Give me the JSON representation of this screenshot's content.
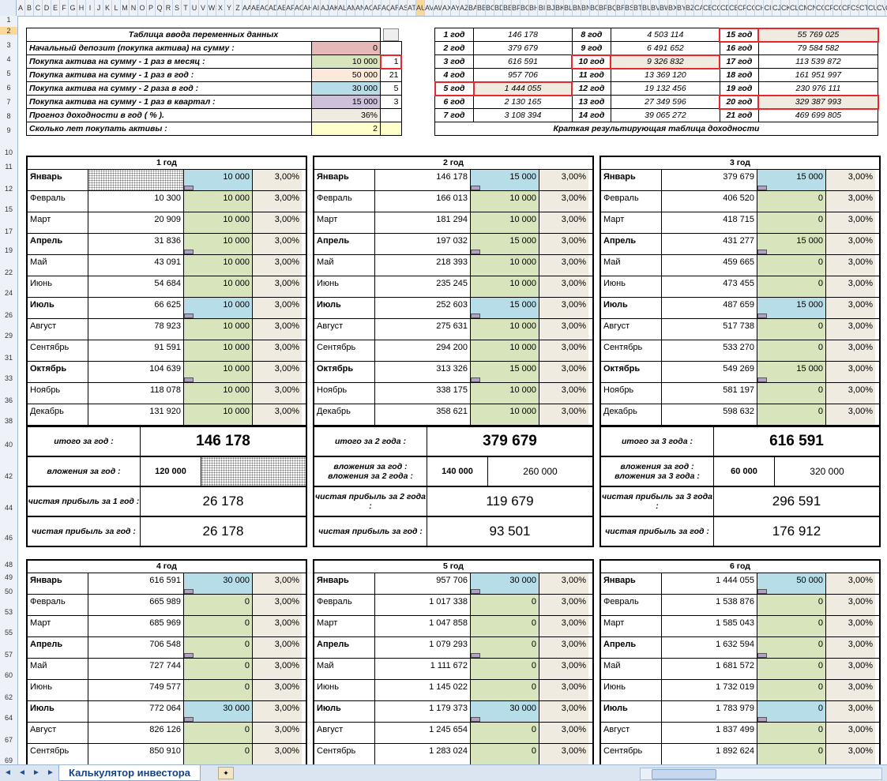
{
  "col_headers": [
    "A",
    "B",
    "C",
    "D",
    "E",
    "F",
    "G",
    "H",
    "I",
    "J",
    "K",
    "L",
    "M",
    "N",
    "O",
    "P",
    "Q",
    "R",
    "S",
    "T",
    "U",
    "V",
    "W",
    "X",
    "Y",
    "Z",
    "AA",
    "AB",
    "AC",
    "AD",
    "AE",
    "AF",
    "AG",
    "AH",
    "AI",
    "AJ",
    "AK",
    "AL",
    "AM",
    "AN",
    "AO",
    "AP",
    "AQ",
    "AR",
    "AS",
    "AT",
    "AU",
    "AV",
    "AW",
    "AX",
    "AY",
    "AZ",
    "BA",
    "BB",
    "BC",
    "BD",
    "BE",
    "BF",
    "BG",
    "BH",
    "BI",
    "BJ",
    "BK",
    "BL",
    "BM",
    "BN",
    "BO",
    "BP",
    "BQ",
    "BR",
    "BS",
    "BT",
    "BU",
    "BV",
    "BW",
    "BX",
    "BY",
    "BZ",
    "CA",
    "CB",
    "CC",
    "CD",
    "CE",
    "CF",
    "CG",
    "CH",
    "CI",
    "CJ",
    "CK",
    "CL",
    "CM",
    "CN",
    "CO",
    "CP",
    "CQ",
    "CR",
    "CS",
    "CT",
    "CU",
    "CV",
    "CW"
  ],
  "row_headers": [
    "1",
    "2",
    "3",
    "4",
    "5",
    "6",
    "7",
    "8",
    "9",
    "10",
    "11",
    "12",
    "15",
    "17",
    "19",
    "22",
    "24",
    "26",
    "29",
    "31",
    "33",
    "36",
    "38",
    "40",
    "42",
    "44",
    "46",
    "48",
    "49",
    "50",
    "53",
    "55",
    "57",
    "60",
    "62",
    "64",
    "67",
    "69"
  ],
  "input_table": {
    "title": "Таблица ввода переменных данных",
    "rows": [
      {
        "label": "Начальный депозит (покупка актива) на сумму :",
        "value": "0",
        "color": "#e6b8b7",
        "extra": ""
      },
      {
        "label": "Покупка актива на сумму - 1 раз в месяц :",
        "value": "10 000",
        "color": "#d7e4bc",
        "extra": "1"
      },
      {
        "label": "Покупка актива на сумму - 1 раз в год :",
        "value": "50 000",
        "color": "#fde9d9",
        "extra": "21"
      },
      {
        "label": "Покупка актива на сумму - 2 раза в год :",
        "value": "30 000",
        "color": "#b7dde8",
        "extra": "5"
      },
      {
        "label": "Покупка актива на сумму - 1 раз в квартал :",
        "value": "15 000",
        "color": "#ccc0da",
        "extra": "3"
      },
      {
        "label": "Прогноз доходности в год  ( % ).",
        "value": "36%",
        "color": "#efebe0",
        "extra": ""
      },
      {
        "label": "Сколько лет покупать активы :",
        "value": "2",
        "color": "#ffffcc",
        "extra": ""
      }
    ]
  },
  "results_table": {
    "caption": "Краткая результирующая таблица доходности",
    "rows": [
      [
        {
          "y": "1 год",
          "v": "146 178"
        },
        {
          "y": "8 год",
          "v": "4 503 114"
        },
        {
          "y": "15 год",
          "v": "55 769 025"
        }
      ],
      [
        {
          "y": "2 год",
          "v": "379 679"
        },
        {
          "y": "9 год",
          "v": "6 491 652"
        },
        {
          "y": "16 год",
          "v": "79 584 582"
        }
      ],
      [
        {
          "y": "3 год",
          "v": "616 591"
        },
        {
          "y": "10 год",
          "v": "9 326 832"
        },
        {
          "y": "17 год",
          "v": "113 539 872"
        }
      ],
      [
        {
          "y": "4 год",
          "v": "957 706"
        },
        {
          "y": "11 год",
          "v": "13 369 120"
        },
        {
          "y": "18 год",
          "v": "161 951 997"
        }
      ],
      [
        {
          "y": "5 год",
          "v": "1 444 055"
        },
        {
          "y": "12 год",
          "v": "19 132 456"
        },
        {
          "y": "19 год",
          "v": "230 976 111"
        }
      ],
      [
        {
          "y": "6 год",
          "v": "2 130 165"
        },
        {
          "y": "13 год",
          "v": "27 349 596"
        },
        {
          "y": "20 год",
          "v": "329 387 993"
        }
      ],
      [
        {
          "y": "7 год",
          "v": "3 108 394"
        },
        {
          "y": "14 год",
          "v": "39 065 272"
        },
        {
          "y": "21 год",
          "v": "469 699 805"
        }
      ]
    ]
  },
  "year_blocks": [
    {
      "title": "1 год",
      "months": [
        {
          "m": "Январь",
          "bal": "",
          "amt": "10 000",
          "pct": "3,00%",
          "bold": true,
          "blue": true
        },
        {
          "m": "Февраль",
          "bal": "10 300",
          "amt": "10 000",
          "pct": "3,00%"
        },
        {
          "m": "Март",
          "bal": "20 909",
          "amt": "10 000",
          "pct": "3,00%"
        },
        {
          "m": "Апрель",
          "bal": "31 836",
          "amt": "10 000",
          "pct": "3,00%",
          "bold": true
        },
        {
          "m": "Май",
          "bal": "43 091",
          "amt": "10 000",
          "pct": "3,00%"
        },
        {
          "m": "Июнь",
          "bal": "54 684",
          "amt": "10 000",
          "pct": "3,00%"
        },
        {
          "m": "Июль",
          "bal": "66 625",
          "amt": "10 000",
          "pct": "3,00%",
          "bold": true,
          "blue": true
        },
        {
          "m": "Август",
          "bal": "78 923",
          "amt": "10 000",
          "pct": "3,00%"
        },
        {
          "m": "Сентябрь",
          "bal": "91 591",
          "amt": "10 000",
          "pct": "3,00%"
        },
        {
          "m": "Октябрь",
          "bal": "104 639",
          "amt": "10 000",
          "pct": "3,00%",
          "bold": true
        },
        {
          "m": "Ноябрь",
          "bal": "118 078",
          "amt": "10 000",
          "pct": "3,00%"
        },
        {
          "m": "Декабрь",
          "bal": "131 920",
          "amt": "10 000",
          "pct": "3,00%"
        }
      ],
      "total_label": "итого за год :",
      "total": "146 178",
      "invest_label": "вложения за год :",
      "invest": "120 000",
      "invest_total": "",
      "profit_cum_label": "чистая прибыль за 1 год :",
      "profit_cum": "26 178",
      "profit_year_label": "чистая прибыль за год :",
      "profit_year": "26 178"
    },
    {
      "title": "2 год",
      "months": [
        {
          "m": "Январь",
          "bal": "146 178",
          "amt": "15 000",
          "pct": "3,00%",
          "bold": true,
          "blue": true
        },
        {
          "m": "Февраль",
          "bal": "166 013",
          "amt": "10 000",
          "pct": "3,00%"
        },
        {
          "m": "Март",
          "bal": "181 294",
          "amt": "10 000",
          "pct": "3,00%"
        },
        {
          "m": "Апрель",
          "bal": "197 032",
          "amt": "15 000",
          "pct": "3,00%",
          "bold": true
        },
        {
          "m": "Май",
          "bal": "218 393",
          "amt": "10 000",
          "pct": "3,00%"
        },
        {
          "m": "Июнь",
          "bal": "235 245",
          "amt": "10 000",
          "pct": "3,00%"
        },
        {
          "m": "Июль",
          "bal": "252 603",
          "amt": "15 000",
          "pct": "3,00%",
          "bold": true,
          "blue": true
        },
        {
          "m": "Август",
          "bal": "275 631",
          "amt": "10 000",
          "pct": "3,00%"
        },
        {
          "m": "Сентябрь",
          "bal": "294 200",
          "amt": "10 000",
          "pct": "3,00%"
        },
        {
          "m": "Октябрь",
          "bal": "313 326",
          "amt": "15 000",
          "pct": "3,00%",
          "bold": true
        },
        {
          "m": "Ноябрь",
          "bal": "338 175",
          "amt": "10 000",
          "pct": "3,00%"
        },
        {
          "m": "Декабрь",
          "bal": "358 621",
          "amt": "10 000",
          "pct": "3,00%"
        }
      ],
      "total_label": "итого за 2 года :",
      "total": "379 679",
      "invest_label": "вложения за год : вложения за 2 года :",
      "invest": "140 000",
      "invest_total": "260 000",
      "profit_cum_label": "чистая прибыль за 2 года :",
      "profit_cum": "119 679",
      "profit_year_label": "чистая прибыль за год :",
      "profit_year": "93 501"
    },
    {
      "title": "3 год",
      "months": [
        {
          "m": "Январь",
          "bal": "379 679",
          "amt": "15 000",
          "pct": "3,00%",
          "bold": true,
          "blue": true
        },
        {
          "m": "Февраль",
          "bal": "406 520",
          "amt": "0",
          "pct": "3,00%"
        },
        {
          "m": "Март",
          "bal": "418 715",
          "amt": "0",
          "pct": "3,00%"
        },
        {
          "m": "Апрель",
          "bal": "431 277",
          "amt": "15 000",
          "pct": "3,00%",
          "bold": true
        },
        {
          "m": "Май",
          "bal": "459 665",
          "amt": "0",
          "pct": "3,00%"
        },
        {
          "m": "Июнь",
          "bal": "473 455",
          "amt": "0",
          "pct": "3,00%"
        },
        {
          "m": "Июль",
          "bal": "487 659",
          "amt": "15 000",
          "pct": "3,00%",
          "bold": true,
          "blue": true
        },
        {
          "m": "Август",
          "bal": "517 738",
          "amt": "0",
          "pct": "3,00%"
        },
        {
          "m": "Сентябрь",
          "bal": "533 270",
          "amt": "0",
          "pct": "3,00%"
        },
        {
          "m": "Октябрь",
          "bal": "549 269",
          "amt": "15 000",
          "pct": "3,00%",
          "bold": true
        },
        {
          "m": "Ноябрь",
          "bal": "581 197",
          "amt": "0",
          "pct": "3,00%"
        },
        {
          "m": "Декабрь",
          "bal": "598 632",
          "amt": "0",
          "pct": "3,00%"
        }
      ],
      "total_label": "итого за 3 года :",
      "total": "616 591",
      "invest_label": "вложения за год : вложения за 3 года :",
      "invest": "60 000",
      "invest_total": "320 000",
      "profit_cum_label": "чистая прибыль за 3 года :",
      "profit_cum": "296 591",
      "profit_year_label": "чистая прибыль за год :",
      "profit_year": "176 912"
    },
    {
      "title": "4 год",
      "months": [
        {
          "m": "Январь",
          "bal": "616 591",
          "amt": "30 000",
          "pct": "3,00%",
          "bold": true,
          "blue": true
        },
        {
          "m": "Февраль",
          "bal": "665 989",
          "amt": "0",
          "pct": "3,00%"
        },
        {
          "m": "Март",
          "bal": "685 969",
          "amt": "0",
          "pct": "3,00%"
        },
        {
          "m": "Апрель",
          "bal": "706 548",
          "amt": "0",
          "pct": "3,00%",
          "bold": true
        },
        {
          "m": "Май",
          "bal": "727 744",
          "amt": "0",
          "pct": "3,00%"
        },
        {
          "m": "Июнь",
          "bal": "749 577",
          "amt": "0",
          "pct": "3,00%"
        },
        {
          "m": "Июль",
          "bal": "772 064",
          "amt": "30 000",
          "pct": "3,00%",
          "bold": true,
          "blue": true
        },
        {
          "m": "Август",
          "bal": "826 126",
          "amt": "0",
          "pct": "3,00%"
        },
        {
          "m": "Сентябрь",
          "bal": "850 910",
          "amt": "0",
          "pct": "3,00%"
        }
      ]
    },
    {
      "title": "5 год",
      "months": [
        {
          "m": "Январь",
          "bal": "957 706",
          "amt": "30 000",
          "pct": "3,00%",
          "bold": true,
          "blue": true
        },
        {
          "m": "Февраль",
          "bal": "1 017 338",
          "amt": "0",
          "pct": "3,00%"
        },
        {
          "m": "Март",
          "bal": "1 047 858",
          "amt": "0",
          "pct": "3,00%"
        },
        {
          "m": "Апрель",
          "bal": "1 079 293",
          "amt": "0",
          "pct": "3,00%",
          "bold": true
        },
        {
          "m": "Май",
          "bal": "1 111 672",
          "amt": "0",
          "pct": "3,00%"
        },
        {
          "m": "Июнь",
          "bal": "1 145 022",
          "amt": "0",
          "pct": "3,00%"
        },
        {
          "m": "Июль",
          "bal": "1 179 373",
          "amt": "30 000",
          "pct": "3,00%",
          "bold": true,
          "blue": true
        },
        {
          "m": "Август",
          "bal": "1 245 654",
          "amt": "0",
          "pct": "3,00%"
        },
        {
          "m": "Сентябрь",
          "bal": "1 283 024",
          "amt": "0",
          "pct": "3,00%"
        }
      ]
    },
    {
      "title": "6 год",
      "months": [
        {
          "m": "Январь",
          "bal": "1 444 055",
          "amt": "50 000",
          "pct": "3,00%",
          "bold": true,
          "blue": true
        },
        {
          "m": "Февраль",
          "bal": "1 538 876",
          "amt": "0",
          "pct": "3,00%"
        },
        {
          "m": "Март",
          "bal": "1 585 043",
          "amt": "0",
          "pct": "3,00%"
        },
        {
          "m": "Апрель",
          "bal": "1 632 594",
          "amt": "0",
          "pct": "3,00%",
          "bold": true
        },
        {
          "m": "Май",
          "bal": "1 681 572",
          "amt": "0",
          "pct": "3,00%"
        },
        {
          "m": "Июнь",
          "bal": "1 732 019",
          "amt": "0",
          "pct": "3,00%"
        },
        {
          "m": "Июль",
          "bal": "1 783 979",
          "amt": "0",
          "pct": "3,00%",
          "bold": true,
          "blue": true
        },
        {
          "m": "Август",
          "bal": "1 837 499",
          "amt": "0",
          "pct": "3,00%"
        },
        {
          "m": "Сентябрь",
          "bal": "1 892 624",
          "amt": "0",
          "pct": "3,00%"
        }
      ]
    }
  ],
  "sheet_tab": "Калькулятор инвестора",
  "colors": {
    "green": "#d7e4bc",
    "blue": "#b7dde8",
    "beige": "#efebe0",
    "red": "#e8262b",
    "tab": "#15428b"
  }
}
